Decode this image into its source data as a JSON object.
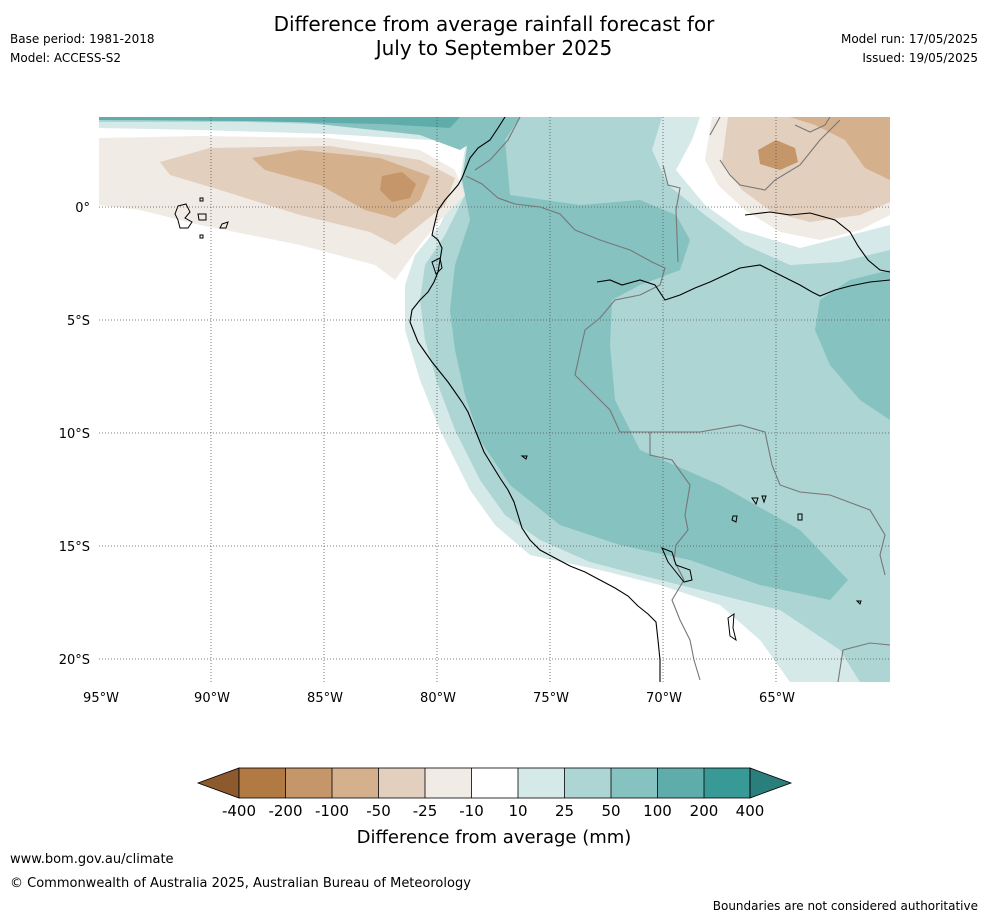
{
  "header": {
    "base_period": "Base period: 1981-2018",
    "model": "Model: ACCESS-S2",
    "model_run": "Model run: 17/05/2025",
    "issued": "Issued: 19/05/2025",
    "title_line1": "Difference from average rainfall forecast for",
    "title_line2": "July to September 2025"
  },
  "map": {
    "longitude_labels": [
      "95°W",
      "90°W",
      "85°W",
      "80°W",
      "75°W",
      "70°W",
      "65°W"
    ],
    "latitude_labels": [
      "0°",
      "5°S",
      "10°S",
      "15°S",
      "20°S"
    ],
    "colors": {
      "m400": "#8c5a2c",
      "m200": "#b07a42",
      "m100": "#c4966a",
      "m50": "#d4b08c",
      "m25": "#e3cfbd",
      "m10": "#f1ebe6",
      "zero": "#ffffff",
      "p10": "#d5e9e8",
      "p25": "#acd5d4",
      "p50": "#85c2c0",
      "p100": "#5fadab",
      "p200": "#389a97",
      "p400": "#2a7f7d"
    }
  },
  "colorbar": {
    "labels": [
      "-400",
      "-200",
      "-100",
      "-50",
      "-25",
      "-10",
      "10",
      "25",
      "50",
      "100",
      "200",
      "400"
    ],
    "title": "Difference from average (mm)"
  },
  "footer": {
    "website": "www.bom.gov.au/climate",
    "copyright": "© Commonwealth of Australia 2025, Australian Bureau of Meteorology",
    "disclaimer": "Boundaries are not considered authoritative"
  }
}
